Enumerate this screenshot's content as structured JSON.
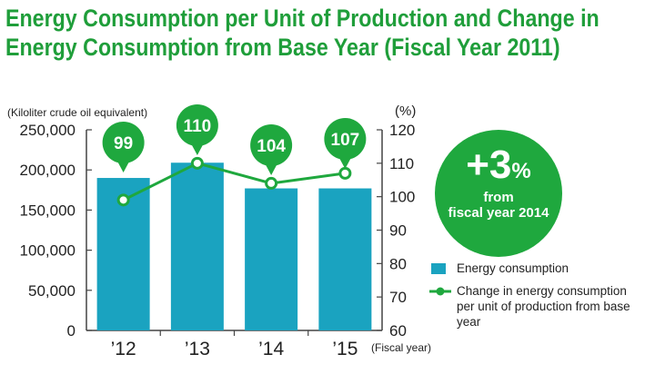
{
  "title_line1": "Energy Consumption per Unit of Production and Change in",
  "title_line2": "Energy Consumption from Base Year (Fiscal Year 2011)",
  "badge": {
    "value": "+3",
    "unit": "%",
    "line1": "from",
    "line2": "fiscal year 2014"
  },
  "legend": {
    "bar": "Energy consumption",
    "line1": "Change in energy consumption",
    "line2": "per unit of production from base year"
  },
  "colors": {
    "bar": "#1aa3c0",
    "line": "#1fa83e",
    "title": "#1f9e3a"
  },
  "chart_data": {
    "type": "bar+line",
    "categories": [
      "’12",
      "’13",
      "’14",
      "’15"
    ],
    "xlabel": "(Fiscal year)",
    "ylabel_left": "(Kiloliter crude oil equivalent)",
    "ylabel_right": "(%)",
    "ylim_left": [
      0,
      250000
    ],
    "ylim_right": [
      60,
      120
    ],
    "yticks_left": [
      "0",
      "50,000",
      "100,000",
      "150,000",
      "200,000",
      "250,000"
    ],
    "yticks_right": [
      "60",
      "70",
      "80",
      "90",
      "100",
      "110",
      "120"
    ],
    "series": [
      {
        "name": "Energy consumption",
        "type": "bar",
        "axis": "left",
        "values": [
          190000,
          209000,
          177000,
          177000
        ]
      },
      {
        "name": "Change in energy consumption per unit of production from base year",
        "type": "line",
        "axis": "right",
        "values": [
          99,
          110,
          104,
          107
        ],
        "labels": [
          "99",
          "110",
          "104",
          "107"
        ]
      }
    ]
  }
}
